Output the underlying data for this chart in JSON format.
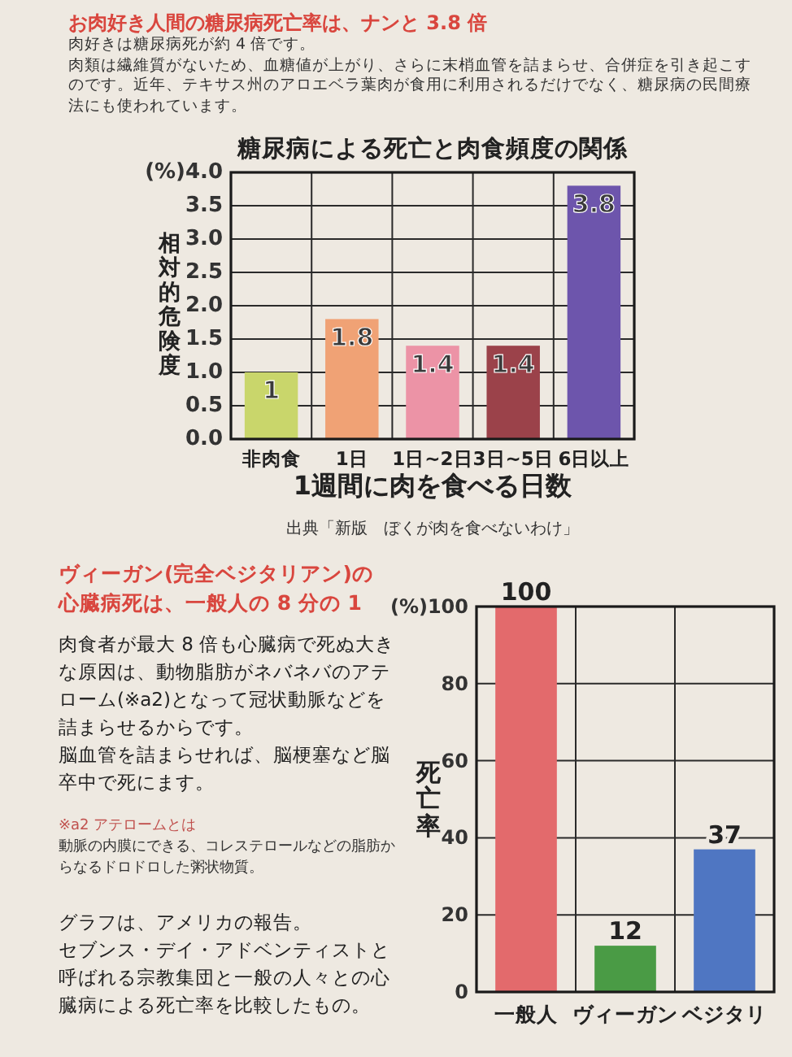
{
  "chart_data": [
    {
      "type": "bar",
      "title": "糖尿病による死亡と肉食頻度の関係",
      "xlabel": "1週間に肉を食べる日数",
      "ylabel": "相対的危険度",
      "categories": [
        "非肉食",
        "1日",
        "1日~2日",
        "3日~5日",
        "6日以上"
      ],
      "values": [
        1,
        1.8,
        1.4,
        1.4,
        3.8
      ],
      "colors": [
        "#c9d66b",
        "#f0a275",
        "#ec93a6",
        "#9b424a",
        "#6d55ac"
      ],
      "ylim": [
        0,
        4
      ],
      "yticks": [
        {
          "value": 0,
          "label": "0.0"
        },
        0.5,
        {
          "value": 1,
          "label": "1.0"
        },
        1.5,
        {
          "value": 2,
          "label": "2.0"
        },
        2.5,
        {
          "value": 3,
          "label": "3.0"
        },
        3.5,
        {
          "value": 4,
          "label": "(%)4.0"
        }
      ],
      "grid": true,
      "data_labels": true,
      "annotations": [
        "お肉好き人間の糖尿病死亡率は、ナンと 3.8 倍",
        "肉好きは糖尿病死が約 4 倍です。",
        "肉類は繊維質がないため、血糖値が上がり、さらに末梢血管を詰まらせ、合併症を引き起こすのです。近年、テキサス州のアロエベラ葉肉が食用に利用されるだけでなく、糖尿病の民間療法にも使われています。",
        "出典「新版　ぼくが肉を食べないわけ」"
      ]
    },
    {
      "type": "bar",
      "title": "ヴィーガン(完全ベジタリアン)の心臓病死は、一般人の 8 分の 1",
      "ylabel": "死亡率",
      "categories": [
        "一般人",
        "ヴィーガン",
        "ベジタリ"
      ],
      "values": [
        100,
        12,
        37
      ],
      "colors": [
        "#e36a6c",
        "#4a9b45",
        "#4f76c2"
      ],
      "ylim": [
        0,
        100
      ],
      "yticks": [
        0,
        20,
        40,
        60,
        80,
        {
          "value": 100,
          "label": "(%)100"
        }
      ],
      "grid": true,
      "data_labels": true,
      "annotations": [
        "肉食者が最大 8 倍も心臓病で死ぬ大きな原因は、動物脂肪がネバネバのアテローム(※a2)となって冠状動脈などを詰まらせるからです。",
        "脳血管を詰まらせれば、脳梗塞など脳卒中で死にます。",
        "※a2 アテロームとは",
        "動脈の内膜にできる、コレステロールなどの脂肪からなるドロドロした粥状物質。",
        "グラフは、アメリカの報告。",
        "セブンス・デイ・アドベンティストと呼ばれる宗教集団と一般の人々との心臓病による死亡率を比較したもの。"
      ]
    }
  ]
}
